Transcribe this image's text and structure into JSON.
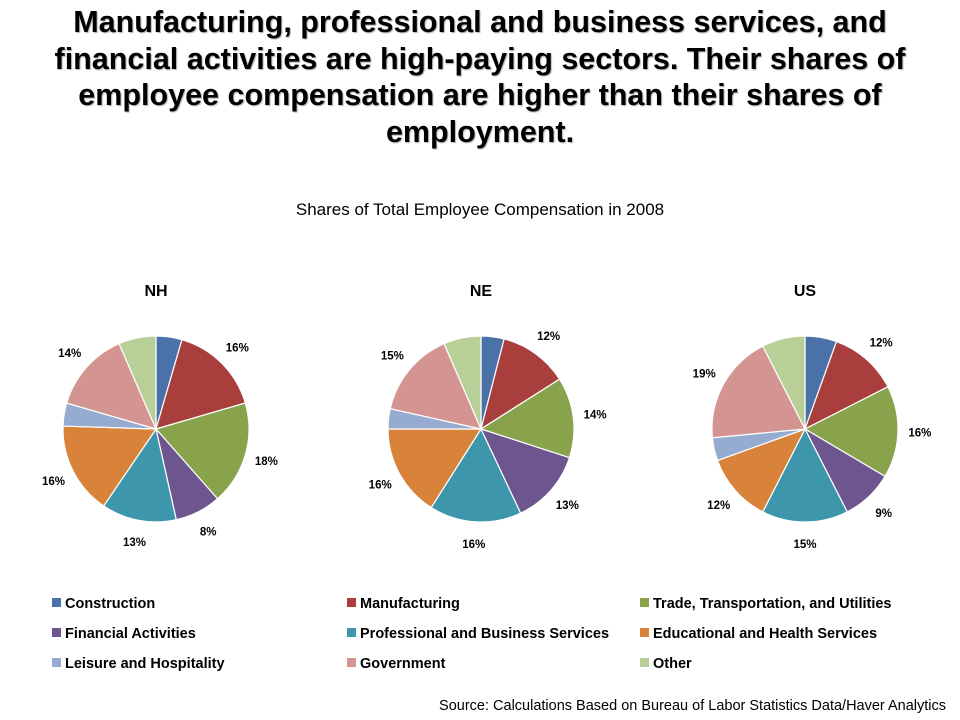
{
  "title": "Manufacturing, professional and business services, and financial activities are high-paying sectors.  Their shares of employee compensation are higher than their shares of employment.",
  "chart_data": {
    "type": "pie",
    "title": "Shares of Total Employee Compensation in 2008",
    "categories": [
      "Construction",
      "Manufacturing",
      "Trade, Transportation, and Utilities",
      "Financial Activities",
      "Professional and Business Services",
      "Educational and Health Services",
      "Leisure and Hospitality",
      "Government",
      "Other"
    ],
    "colors": [
      "#4a72a8",
      "#a83f3c",
      "#88a34c",
      "#6d5590",
      "#3e96ad",
      "#d8823a",
      "#95abd0",
      "#d49492",
      "#b8cf98"
    ],
    "legend_position": "bottom",
    "pies": [
      {
        "name": "NH",
        "values": [
          4.5,
          16,
          18,
          8,
          13,
          16,
          4,
          14,
          6.5
        ],
        "labels": [
          "",
          "16%",
          "18%",
          "8%",
          "13%",
          "16%",
          "",
          "14%",
          ""
        ]
      },
      {
        "name": "NE",
        "values": [
          4,
          12,
          14,
          13,
          16,
          16,
          3.5,
          15,
          6.5
        ],
        "labels": [
          "",
          "12%",
          "14%",
          "13%",
          "16%",
          "16%",
          "",
          "15%",
          ""
        ]
      },
      {
        "name": "US",
        "values": [
          5.5,
          12,
          16,
          9,
          15,
          12,
          4,
          19,
          7.5
        ],
        "labels": [
          "",
          "12%",
          "16%",
          "9%",
          "15%",
          "12%",
          "",
          "19%",
          ""
        ]
      }
    ]
  },
  "source": "Source: Calculations Based on Bureau of Labor Statistics Data/Haver Analytics"
}
